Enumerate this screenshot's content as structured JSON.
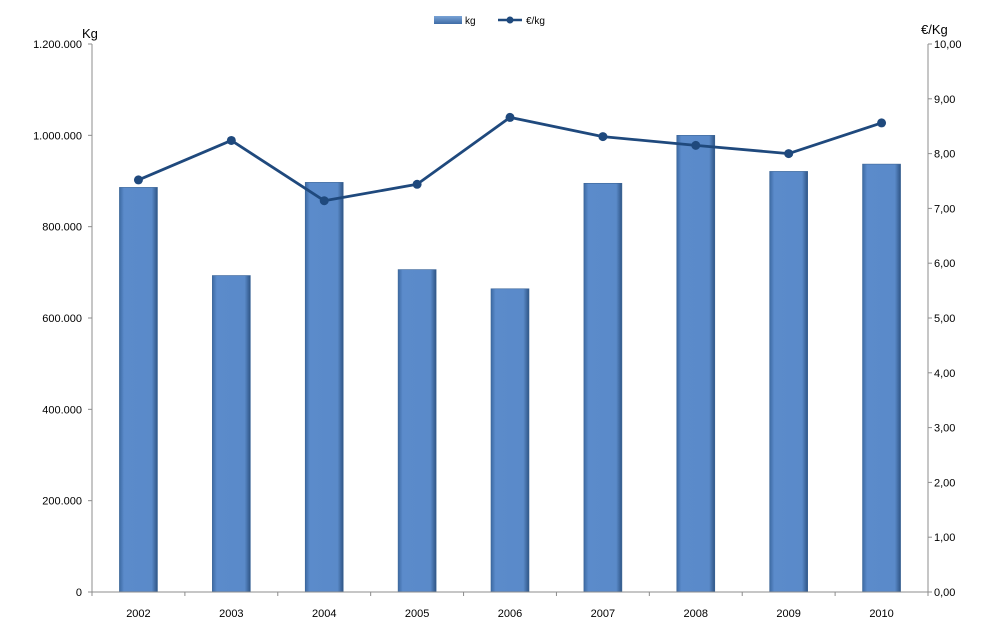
{
  "chart_data": {
    "type": "bar",
    "categories": [
      "2002",
      "2003",
      "2004",
      "2005",
      "2006",
      "2007",
      "2008",
      "2009",
      "2010"
    ],
    "series": [
      {
        "name": "kg",
        "type": "bar",
        "axis": "left",
        "values": [
          886000,
          693000,
          897000,
          706000,
          664000,
          895000,
          1000000,
          921000,
          937000
        ]
      },
      {
        "name": "€/kg",
        "type": "line",
        "axis": "right",
        "values": [
          7.52,
          8.24,
          7.14,
          7.44,
          8.66,
          8.31,
          8.15,
          8.0,
          8.56
        ]
      }
    ],
    "ylabel_left": "Kg",
    "ylabel_right": "€/Kg",
    "ylim_left": [
      0,
      1200000
    ],
    "ylim_right": [
      0,
      10
    ],
    "yticks_left": [
      "0",
      "200.000",
      "400.000",
      "600.000",
      "800.000",
      "1.000.000",
      "1.200.000"
    ],
    "yticks_right": [
      "0,00",
      "1,00",
      "2,00",
      "3,00",
      "4,00",
      "5,00",
      "6,00",
      "7,00",
      "8,00",
      "9,00",
      "10,00"
    ],
    "grid": false,
    "legend": "top-center",
    "colors": {
      "bar": "#4f81bd",
      "line": "#1f497d"
    }
  }
}
